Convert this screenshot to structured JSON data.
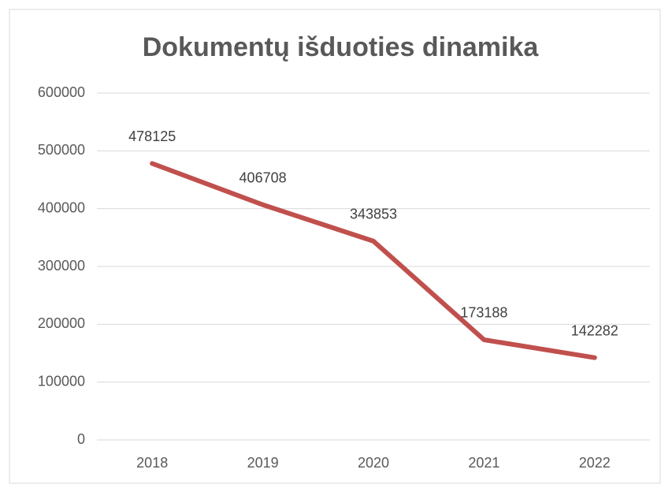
{
  "chart_data": {
    "type": "line",
    "title": "Dokumentų išduoties dinamika",
    "categories": [
      "2018",
      "2019",
      "2020",
      "2021",
      "2022"
    ],
    "values": [
      478125,
      406708,
      343853,
      173188,
      142282
    ],
    "color": "#c0504d",
    "ylim": [
      0,
      600000
    ],
    "yticks": [
      0,
      100000,
      200000,
      300000,
      400000,
      500000,
      600000
    ],
    "grid": true
  }
}
